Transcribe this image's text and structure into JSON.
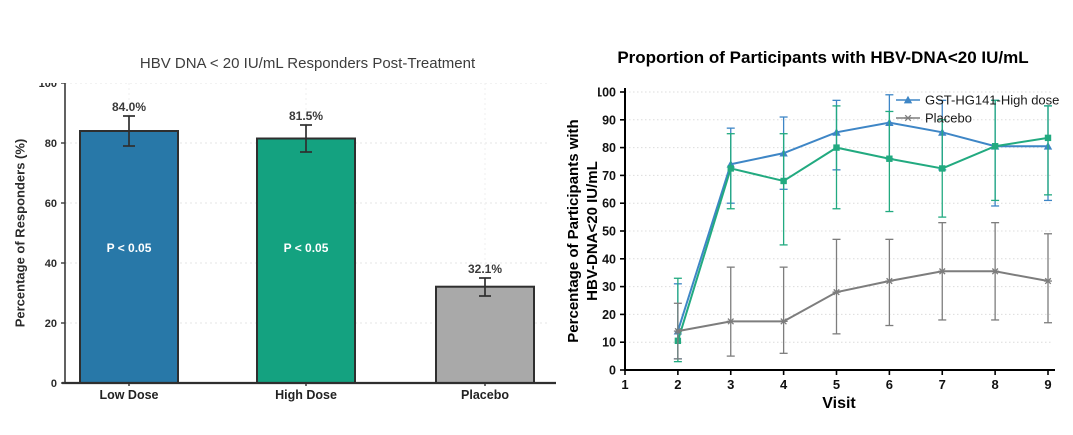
{
  "page": {
    "background": "#ffffff"
  },
  "chart_data": [
    {
      "type": "bar",
      "title": "HBV DNA < 20 IU/mL Responders Post-Treatment",
      "ylabel": "Percentage of Responders (%)",
      "xlabel": "",
      "categories": [
        "Low Dose",
        "High Dose",
        "Placebo"
      ],
      "values": [
        84.0,
        81.5,
        32.1
      ],
      "value_labels": [
        "84.0%",
        "81.5%",
        "32.1%"
      ],
      "error_low": [
        79,
        77,
        29
      ],
      "error_high": [
        89,
        86,
        35
      ],
      "bar_annotations": [
        "P < 0.05",
        "P < 0.05",
        ""
      ],
      "bar_colors": [
        "#2878a8",
        "#14a280",
        "#a9a9a9"
      ],
      "bar_edge_color": "#2f2f2f",
      "ylim": [
        0,
        100
      ],
      "yticks": [
        0,
        20,
        40,
        60,
        80,
        100
      ],
      "grid": true,
      "legend_position": "none"
    },
    {
      "type": "line",
      "title": "Proportion of Participants with HBV-DNA<20 IU/mL",
      "ylabel_lines": [
        "Percentage of Participants with",
        "HBV-DNA<20 IU/mL"
      ],
      "xlabel": "Visit",
      "x": [
        2,
        3,
        4,
        5,
        6,
        7,
        8,
        9
      ],
      "xticks": [
        1,
        2,
        3,
        4,
        5,
        6,
        7,
        8,
        9
      ],
      "ylim": [
        0,
        100
      ],
      "yticks": [
        0,
        10,
        20,
        30,
        40,
        50,
        60,
        70,
        80,
        90,
        100
      ],
      "grid": true,
      "legend_position": "top-right",
      "series": [
        {
          "name": "GST-HG141-High dose",
          "color": "#3e86c6",
          "marker": "triangle",
          "in_legend": true,
          "values": [
            14,
            74,
            78,
            85.5,
            89,
            85.5,
            80.5,
            80.5
          ],
          "err_low": [
            4,
            60,
            65,
            72,
            76,
            72,
            59,
            61
          ],
          "err_high": [
            31,
            87,
            91,
            97,
            99,
            97,
            97,
            95
          ]
        },
        {
          "name": "",
          "color": "#22aa80",
          "marker": "square",
          "in_legend": false,
          "values": [
            10.5,
            72.5,
            68,
            80,
            76,
            72.5,
            80.5,
            83.5
          ],
          "err_low": [
            3,
            58,
            45,
            58,
            57,
            55,
            61,
            63
          ],
          "err_high": [
            33,
            85,
            85,
            95,
            93,
            90,
            97,
            95
          ]
        },
        {
          "name": "Placebo",
          "color": "#7d7d7d",
          "marker": "star",
          "in_legend": true,
          "values": [
            14,
            17.5,
            17.5,
            28,
            32,
            35.5,
            35.5,
            32
          ],
          "err_low": [
            4,
            5,
            6,
            13,
            16,
            18,
            18,
            17
          ],
          "err_high": [
            24,
            37,
            37,
            47,
            47,
            53,
            53,
            49
          ]
        }
      ]
    }
  ]
}
